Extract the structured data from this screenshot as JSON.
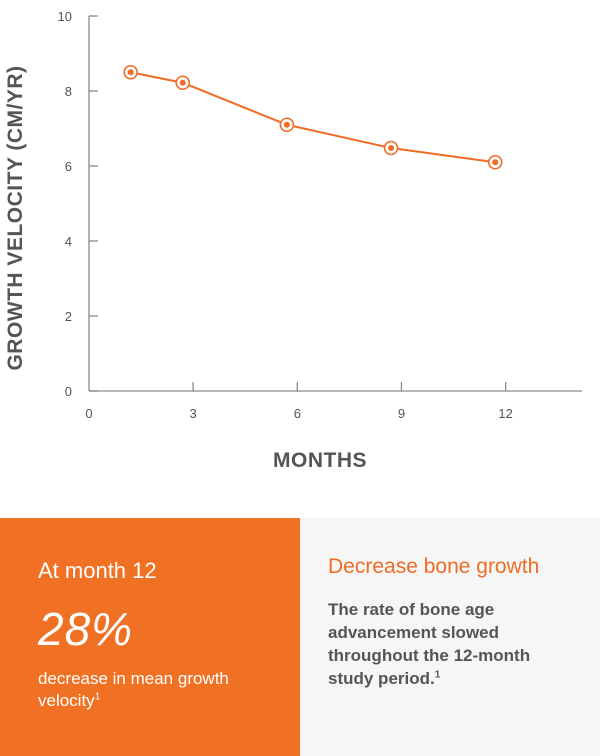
{
  "chart_data": {
    "type": "line",
    "xlabel": "MONTHS",
    "ylabel": "GROWTH VELOCITY (CM/YR)",
    "x_ticks": [
      0,
      3,
      6,
      9,
      12
    ],
    "y_ticks": [
      0,
      2,
      4,
      6,
      8,
      10
    ],
    "xlim": [
      0,
      14.2
    ],
    "ylim": [
      0,
      10
    ],
    "grid": false,
    "series": [
      {
        "x": [
          1.2,
          2.7,
          5.7,
          8.7,
          11.7
        ],
        "y": [
          8.5,
          8.22,
          7.1,
          6.48,
          6.1
        ]
      }
    ],
    "color": "#ef6c24"
  },
  "callout_left": {
    "heading": "At month 12",
    "stat": "28%",
    "caption": "decrease in mean growth velocity",
    "caption_sup": "1",
    "background": "#f07124"
  },
  "callout_right": {
    "heading": "Decrease bone growth",
    "body": "The rate of bone age advancement slowed throughout the 12-month study period.",
    "body_sup": "1",
    "background": "#f6f6f6"
  }
}
